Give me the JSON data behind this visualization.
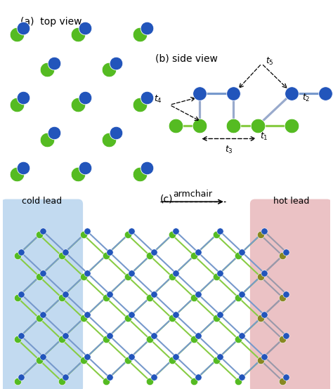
{
  "blue_color": "#2255bb",
  "green_color": "#55bb22",
  "bond_blue": "#7799cc",
  "bond_green": "#88cc44",
  "bond_mixed": "#99aacc",
  "background": "white",
  "cold_lead_color": "#b8d4ee",
  "hot_lead_color": "#e8b8bb",
  "hot_green": "#888822",
  "hot_bond": "#9999aa",
  "title_a": "(a)  top view",
  "title_b": "(b) side view",
  "title_c": "(c)"
}
